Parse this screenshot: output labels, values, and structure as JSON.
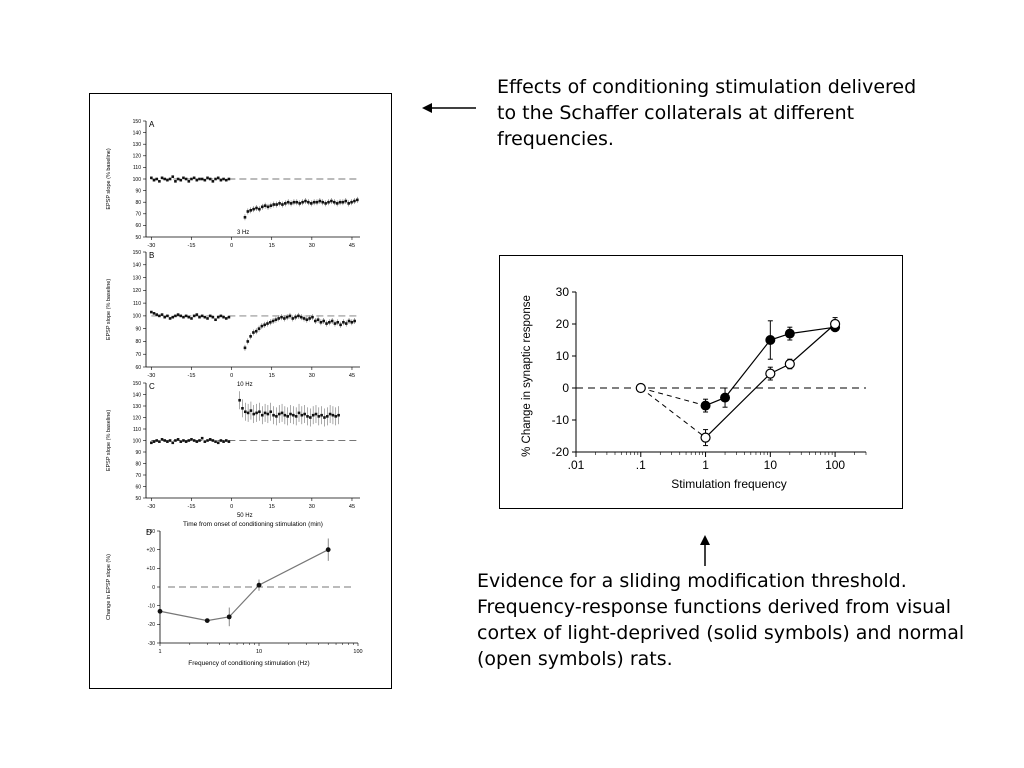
{
  "captions": {
    "top": "Effects of conditioning stimulation delivered to the Schaffer collaterals at different frequencies.",
    "bottom": "Evidence for a sliding modification threshold. Frequency-response functions derived from visual cortex of light-deprived (solid symbols) and normal (open symbols) rats."
  },
  "chart_data": [
    {
      "panel": "A",
      "type": "scatter",
      "ylabel": "EPSP slope (% baseline)",
      "annotation": "3 Hz",
      "xlim": [
        -32,
        48
      ],
      "ylim": [
        50,
        150
      ],
      "xticks": [
        -30,
        -15,
        0,
        15,
        30,
        45
      ],
      "yticks": [
        50,
        60,
        70,
        80,
        90,
        100,
        110,
        120,
        130,
        140,
        150
      ],
      "reference_line": 100,
      "series": [
        {
          "segment": "baseline",
          "x_start": -30,
          "x_end": -1,
          "count": 30,
          "values": [
            101,
            99,
            100,
            98,
            101,
            100,
            99,
            100,
            102,
            98,
            100,
            99,
            101,
            100,
            98,
            100,
            101,
            99,
            100,
            100,
            99,
            101,
            100,
            98,
            100,
            101,
            99,
            100,
            99,
            100
          ]
        },
        {
          "segment": "post",
          "x_start": 5,
          "x_end": 47,
          "count": 40,
          "values": [
            67,
            72,
            73,
            74,
            75,
            74,
            76,
            77,
            76,
            77,
            78,
            78,
            79,
            78,
            79,
            80,
            79,
            80,
            80,
            79,
            80,
            81,
            80,
            79,
            80,
            80,
            81,
            80,
            79,
            80,
            81,
            80,
            79,
            80,
            80,
            81,
            79,
            80,
            81,
            82
          ]
        }
      ]
    },
    {
      "panel": "B",
      "type": "scatter",
      "ylabel": "EPSP slope (% baseline)",
      "annotation": "10 Hz",
      "xlim": [
        -32,
        48
      ],
      "ylim": [
        60,
        150
      ],
      "xticks": [
        -30,
        -15,
        0,
        15,
        30,
        45
      ],
      "yticks": [
        60,
        70,
        80,
        90,
        100,
        110,
        120,
        130,
        140,
        150
      ],
      "reference_line": 100,
      "series": [
        {
          "segment": "baseline",
          "x_start": -30,
          "x_end": -1,
          "count": 30,
          "values": [
            103,
            102,
            101,
            100,
            101,
            99,
            100,
            98,
            99,
            100,
            101,
            100,
            99,
            100,
            99,
            98,
            100,
            101,
            99,
            100,
            99,
            98,
            100,
            99,
            97,
            99,
            100,
            99,
            98,
            99
          ]
        },
        {
          "segment": "post",
          "x_start": 5,
          "x_end": 46,
          "count": 40,
          "values": [
            75,
            80,
            84,
            87,
            88,
            90,
            92,
            93,
            94,
            95,
            96,
            97,
            98,
            99,
            98,
            99,
            100,
            98,
            99,
            100,
            99,
            98,
            97,
            98,
            99,
            96,
            97,
            95,
            96,
            94,
            95,
            96,
            94,
            95,
            93,
            95,
            94,
            96,
            95,
            96
          ]
        }
      ]
    },
    {
      "panel": "C",
      "type": "scatter",
      "ylabel": "EPSP slope (% baseline)",
      "annotation": "50 Hz",
      "xlabel": "Time from onset of conditioning stimulation (min)",
      "xlim": [
        -32,
        48
      ],
      "ylim": [
        50,
        150
      ],
      "xticks": [
        -30,
        -15,
        0,
        15,
        30,
        45
      ],
      "yticks": [
        50,
        60,
        70,
        80,
        90,
        100,
        110,
        120,
        130,
        140,
        150
      ],
      "reference_line": 100,
      "series": [
        {
          "segment": "baseline",
          "x_start": -30,
          "x_end": -1,
          "count": 30,
          "values": [
            98,
            99,
            100,
            99,
            101,
            100,
            99,
            100,
            98,
            100,
            101,
            99,
            100,
            99,
            100,
            101,
            100,
            99,
            100,
            102,
            99,
            100,
            101,
            100,
            99,
            98,
            100,
            99,
            100,
            99
          ]
        },
        {
          "segment": "post",
          "x_start": 3,
          "x_end": 40,
          "count": 36,
          "values": [
            135,
            128,
            125,
            124,
            126,
            123,
            124,
            125,
            122,
            124,
            123,
            125,
            122,
            121,
            123,
            124,
            122,
            121,
            123,
            122,
            121,
            124,
            122,
            123,
            121,
            120,
            122,
            123,
            121,
            122,
            120,
            121,
            123,
            122,
            121,
            122
          ]
        }
      ]
    },
    {
      "panel": "D",
      "type": "line",
      "ylabel": "Change in EPSP slope (%)",
      "xlabel": "Frequency of conditioning stimulation (Hz)",
      "x_scale": "log",
      "xlim": [
        1,
        100
      ],
      "ylim": [
        -30,
        30
      ],
      "xticks": [
        1,
        10,
        100
      ],
      "yticks": [
        30,
        20,
        10,
        0,
        -10,
        -20,
        -30
      ],
      "ytick_labels": [
        "+30",
        "+20",
        "+10",
        "0",
        "-10",
        "-20",
        "-30"
      ],
      "reference_line": 0,
      "series": [
        {
          "x": [
            1,
            3,
            5,
            10,
            50
          ],
          "y": [
            -13,
            -18,
            -16,
            1,
            20
          ],
          "err": [
            0,
            0,
            5,
            3,
            6
          ]
        }
      ]
    },
    {
      "panel": "sliding-threshold",
      "type": "line",
      "ylabel": "% Change in synaptic response",
      "xlabel": "Stimulation frequency",
      "x_scale": "log",
      "xlim": [
        0.01,
        300
      ],
      "ylim": [
        -20,
        30
      ],
      "xticks": [
        0.01,
        0.1,
        1,
        10,
        100
      ],
      "xtick_labels": [
        ".01",
        ".1",
        "1",
        "10",
        "100"
      ],
      "yticks": [
        -20,
        -10,
        0,
        10,
        20,
        30
      ],
      "reference_line": 0,
      "series": [
        {
          "symbol": "solid",
          "x": [
            1,
            2,
            10,
            20,
            100
          ],
          "y": [
            -5.5,
            -3,
            15,
            17,
            19
          ],
          "err": [
            2,
            3,
            6,
            2,
            1
          ]
        },
        {
          "symbol": "open",
          "x": [
            0.1,
            1,
            10,
            20,
            100
          ],
          "y": [
            0,
            -15.5,
            4.5,
            7.5,
            20
          ],
          "err": [
            0,
            2.5,
            2,
            1.5,
            2
          ]
        }
      ]
    }
  ]
}
